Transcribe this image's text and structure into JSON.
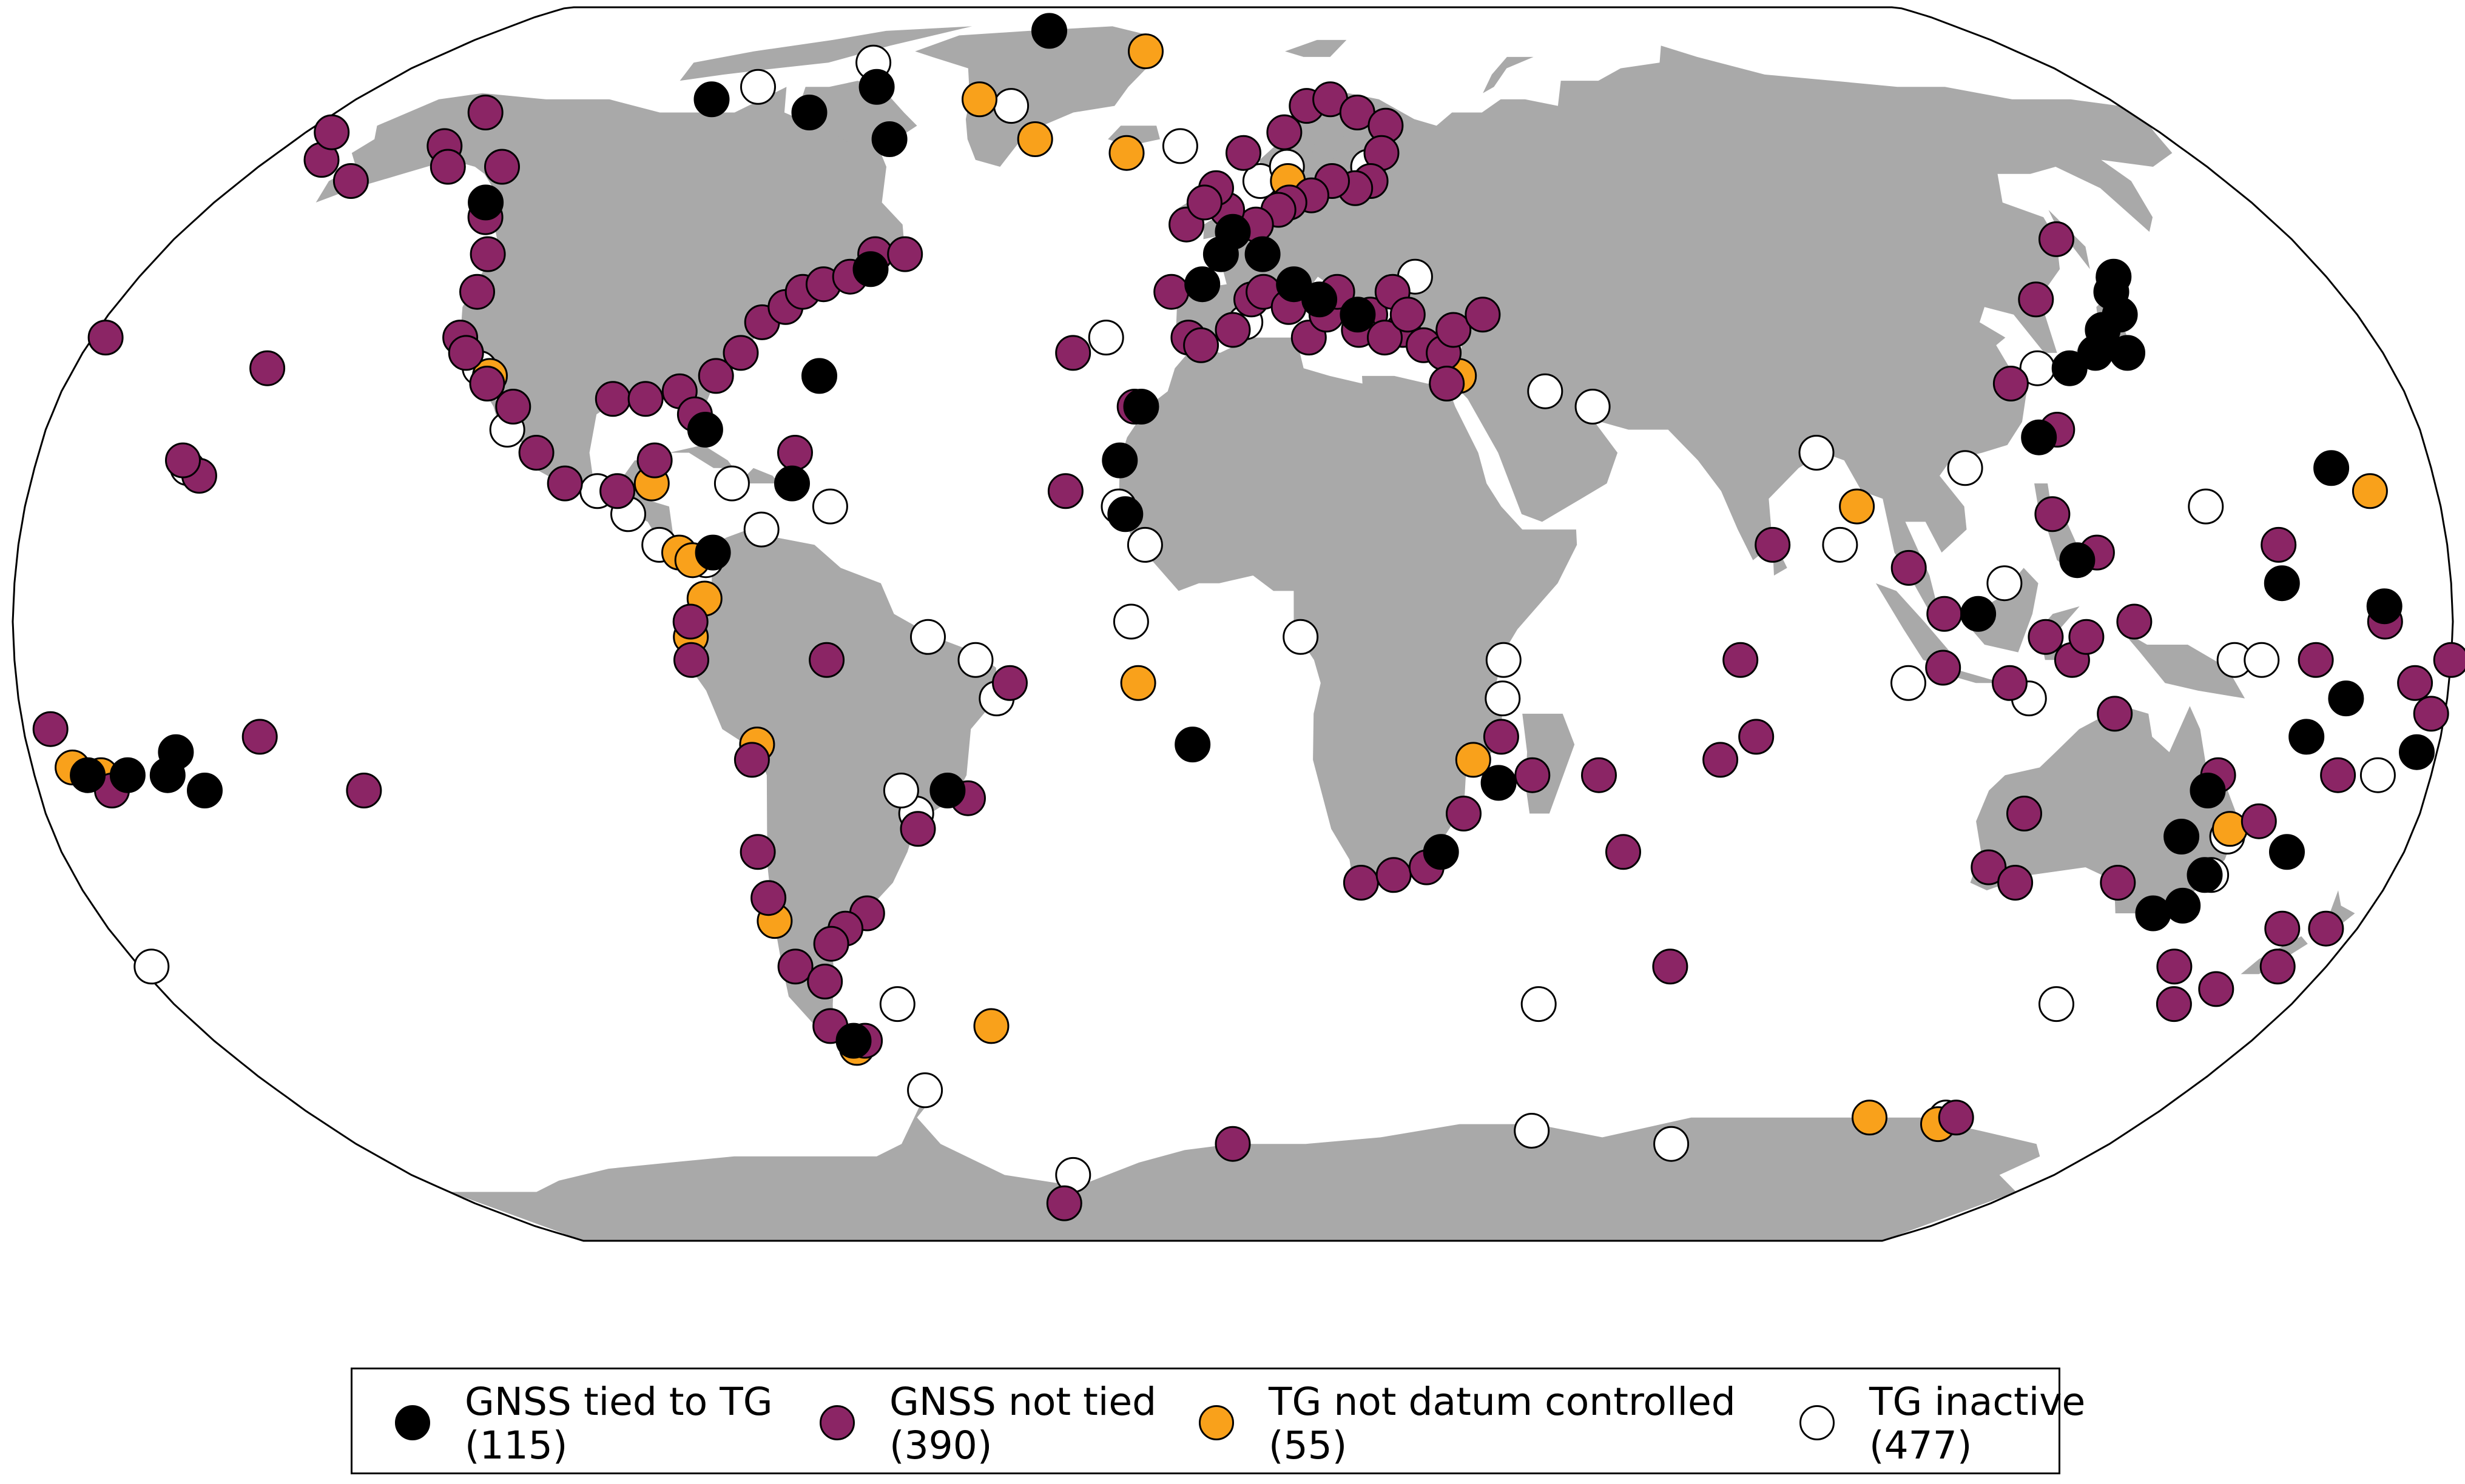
{
  "colors": {
    "ocean": "#ffffff",
    "land": "#a9a9a9",
    "frame": "#000000",
    "marker_outline": "#000000"
  },
  "legend": {
    "items": [
      {
        "key": "gnss_tied",
        "label": "GNSS tied to TG",
        "count": "(115)",
        "color": "#000000"
      },
      {
        "key": "gnss_not_tied",
        "label": "GNSS not tied",
        "count": "(390)",
        "color": "#8b2565"
      },
      {
        "key": "tg_not_datum",
        "label": "TG not datum controlled",
        "count": "(55)",
        "color": "#f9a11b"
      },
      {
        "key": "tg_inactive",
        "label": "TG inactive",
        "count": "(477)",
        "color": "#ffffff"
      }
    ]
  },
  "map_data": {
    "projection": "Robinson",
    "stations": {
      "tg_inactive": [
        [
          -100,
          72
        ],
        [
          -80,
          76
        ],
        [
          -45,
          69
        ],
        [
          -117,
          33
        ],
        [
          -110,
          25
        ],
        [
          -95,
          17
        ],
        [
          -90,
          14
        ],
        [
          -85,
          10
        ],
        [
          -78,
          8
        ],
        [
          -70,
          12
        ],
        [
          -75,
          18
        ],
        [
          -60,
          15
        ],
        [
          -45,
          -2
        ],
        [
          -38,
          -5
        ],
        [
          -35,
          -10
        ],
        [
          -48,
          -25
        ],
        [
          -50,
          -22
        ],
        [
          -57,
          -50
        ],
        [
          -58,
          -62
        ],
        [
          -10,
          63
        ],
        [
          5,
          58
        ],
        [
          10,
          60
        ],
        [
          25,
          60
        ],
        [
          30,
          45
        ],
        [
          48,
          30
        ],
        [
          55,
          28
        ],
        [
          -17,
          15
        ],
        [
          -20,
          37
        ],
        [
          -13,
          10
        ],
        [
          10,
          -2
        ],
        [
          40,
          -5
        ],
        [
          40,
          -10
        ],
        [
          88,
          22
        ],
        [
          90,
          10
        ],
        [
          110,
          20
        ],
        [
          114,
          5
        ],
        [
          118,
          -10
        ],
        [
          100,
          -8
        ],
        [
          125,
          33
        ],
        [
          145,
          15
        ],
        [
          148,
          -5
        ],
        [
          152,
          -5
        ],
        [
          152,
          -28
        ],
        [
          152,
          -33
        ],
        [
          172,
          -20
        ],
        [
          140,
          -50
        ],
        [
          90,
          -70
        ],
        [
          52,
          -50
        ],
        [
          -178,
          -45
        ],
        [
          -157,
          20
        ],
        [
          -15,
          0
        ],
        [
          2,
          39
        ],
        [
          -35,
          -75
        ],
        [
          60,
          -68
        ],
        [
          140,
          -66
        ]
      ],
      "gnss_tied": [
        [
          -107,
          70
        ],
        [
          -85,
          68
        ],
        [
          -75,
          72
        ],
        [
          -66,
          64
        ],
        [
          -45,
          82
        ],
        [
          -132,
          55
        ],
        [
          -60,
          46
        ],
        [
          -64,
          32
        ],
        [
          -80,
          25
        ],
        [
          -66,
          18
        ],
        [
          -77,
          9
        ],
        [
          -43,
          -22
        ],
        [
          -14,
          28
        ],
        [
          -16,
          14
        ],
        [
          -17,
          21
        ],
        [
          -6,
          -16
        ],
        [
          -67,
          -55
        ],
        [
          40,
          -21
        ],
        [
          32,
          -30
        ],
        [
          140,
          35
        ],
        [
          138,
          38
        ],
        [
          142,
          40
        ],
        [
          145,
          45
        ],
        [
          143,
          43
        ],
        [
          135,
          35
        ],
        [
          130,
          33
        ],
        [
          122,
          24
        ],
        [
          110,
          1
        ],
        [
          125,
          8
        ],
        [
          155,
          5
        ],
        [
          170,
          2
        ],
        [
          165,
          -10
        ],
        [
          160,
          -15
        ],
        [
          145,
          -28
        ],
        [
          147,
          -22
        ],
        [
          162,
          -30
        ],
        [
          177,
          -17
        ],
        [
          150,
          -37
        ],
        [
          151,
          -33
        ],
        [
          146,
          -38
        ],
        [
          -166,
          -20
        ],
        [
          -158,
          -17
        ],
        [
          -160,
          -20
        ],
        [
          -172,
          -20
        ],
        [
          -155,
          -22
        ],
        [
          165,
          20
        ],
        [
          5,
          48
        ],
        [
          -2,
          48
        ],
        [
          10,
          44
        ],
        [
          14,
          42
        ],
        [
          0,
          51
        ],
        [
          -5,
          44
        ],
        [
          20,
          40
        ]
      ],
      "gnss_not_tied": [
        [
          -170,
          61
        ],
        [
          -160,
          58
        ],
        [
          -150,
          63
        ],
        [
          -145,
          60
        ],
        [
          -135,
          60
        ],
        [
          -130,
          53
        ],
        [
          -125,
          48
        ],
        [
          -123,
          43
        ],
        [
          -122,
          37
        ],
        [
          -120,
          35
        ],
        [
          -115,
          31
        ],
        [
          -110,
          28
        ],
        [
          -105,
          22
        ],
        [
          -100,
          18
        ],
        [
          -95,
          29
        ],
        [
          -90,
          29
        ],
        [
          -85,
          30
        ],
        [
          -82,
          27
        ],
        [
          -80,
          32
        ],
        [
          -77,
          35
        ],
        [
          -75,
          39
        ],
        [
          -72,
          41
        ],
        [
          -70,
          43
        ],
        [
          -67,
          44
        ],
        [
          -63,
          45
        ],
        [
          -60,
          48
        ],
        [
          -55,
          48
        ],
        [
          -92,
          17
        ],
        [
          -87,
          21
        ],
        [
          -66,
          22
        ],
        [
          -80,
          0
        ],
        [
          -80,
          -5
        ],
        [
          -72,
          -18
        ],
        [
          -73,
          -30
        ],
        [
          -73,
          -36
        ],
        [
          -72,
          -45
        ],
        [
          -58,
          -38
        ],
        [
          -62,
          -40
        ],
        [
          -65,
          -42
        ],
        [
          -68,
          -47
        ],
        [
          -70,
          -53
        ],
        [
          -48,
          -27
        ],
        [
          -40,
          -23
        ],
        [
          -33,
          -8
        ],
        [
          -25,
          35
        ],
        [
          -15,
          28
        ],
        [
          -25,
          17
        ],
        [
          -65,
          -55
        ],
        [
          -150,
          33
        ],
        [
          -155,
          19
        ],
        [
          -158,
          21
        ],
        [
          -145,
          -15
        ],
        [
          -131,
          -22
        ],
        [
          -178,
          37
        ],
        [
          -169,
          -22
        ],
        [
          -176,
          -14
        ],
        [
          20,
          -34
        ],
        [
          25,
          -33
        ],
        [
          30,
          -32
        ],
        [
          35,
          -25
        ],
        [
          40,
          -15
        ],
        [
          45,
          -20
        ],
        [
          55,
          -20
        ],
        [
          60,
          -30
        ],
        [
          72,
          -45
        ],
        [
          78,
          -15
        ],
        [
          75,
          -5
        ],
        [
          80,
          10
        ],
        [
          73,
          -18
        ],
        [
          100,
          7
        ],
        [
          105,
          1
        ],
        [
          105,
          -6
        ],
        [
          115,
          -8
        ],
        [
          120,
          -2
        ],
        [
          124,
          -5
        ],
        [
          128,
          9
        ],
        [
          122,
          14
        ],
        [
          126,
          -2
        ],
        [
          133,
          0
        ],
        [
          131,
          -12
        ],
        [
          120,
          -25
        ],
        [
          117,
          -32
        ],
        [
          122,
          -34
        ],
        [
          138,
          -34
        ],
        [
          148,
          -20
        ],
        [
          156,
          -26
        ],
        [
          166,
          -20
        ],
        [
          175,
          -40
        ],
        [
          172,
          -45
        ],
        [
          165,
          -48
        ],
        [
          160,
          -50
        ],
        [
          155,
          -45
        ],
        [
          168,
          -40
        ],
        [
          178,
          -12
        ],
        [
          180,
          -5
        ],
        [
          125,
          25
        ],
        [
          120,
          31
        ],
        [
          130,
          42
        ],
        [
          140,
          50
        ],
        [
          155,
          10
        ],
        [
          160,
          -5
        ],
        [
          170,
          0
        ],
        [
          175,
          -8
        ],
        [
          142,
          -66
        ],
        [
          10,
          65
        ],
        [
          15,
          69
        ],
        [
          20,
          70
        ],
        [
          25,
          68
        ],
        [
          30,
          66
        ],
        [
          28,
          62
        ],
        [
          25,
          58
        ],
        [
          22,
          57
        ],
        [
          18,
          58
        ],
        [
          14,
          56
        ],
        [
          10,
          55
        ],
        [
          8,
          54
        ],
        [
          4,
          52
        ],
        [
          -1,
          54
        ],
        [
          -3,
          57
        ],
        [
          2,
          62
        ],
        [
          22,
          40
        ],
        [
          27,
          38
        ],
        [
          30,
          36
        ],
        [
          33,
          35
        ],
        [
          35,
          38
        ],
        [
          40,
          40
        ],
        [
          26,
          43
        ],
        [
          -8,
          52
        ],
        [
          -5,
          55
        ],
        [
          -10,
          43
        ],
        [
          -7,
          37
        ],
        [
          -5,
          36
        ],
        [
          0,
          38
        ],
        [
          3,
          42
        ],
        [
          5,
          43
        ],
        [
          9,
          41
        ],
        [
          12,
          37
        ],
        [
          15,
          40
        ],
        [
          17,
          43
        ],
        [
          20,
          38
        ],
        [
          24,
          37
        ],
        [
          28,
          40
        ],
        [
          33,
          31
        ],
        [
          -60,
          -5
        ],
        [
          -175,
          65
        ],
        [
          -150,
          68
        ],
        [
          0,
          -70
        ],
        [
          -40,
          -80
        ]
      ],
      "tg_not_datum": [
        [
          -52,
          70
        ],
        [
          -38,
          64
        ],
        [
          -20,
          78
        ],
        [
          -115,
          32
        ],
        [
          -87,
          18
        ],
        [
          -82,
          9
        ],
        [
          -80,
          8
        ],
        [
          -78,
          3
        ],
        [
          -80,
          -2
        ],
        [
          -71,
          -16
        ],
        [
          -73,
          -39
        ],
        [
          -67,
          -56
        ],
        [
          -42,
          -53
        ],
        [
          -14,
          -8
        ],
        [
          35,
          32
        ],
        [
          36,
          -18
        ],
        [
          93,
          15
        ],
        [
          140,
          -67
        ],
        [
          152,
          -27
        ],
        [
          170,
          17
        ],
        [
          -174,
          -19
        ],
        [
          -170,
          -20
        ],
        [
          125,
          -66
        ],
        [
          -20,
          62
        ],
        [
          10,
          58
        ]
      ]
    }
  }
}
